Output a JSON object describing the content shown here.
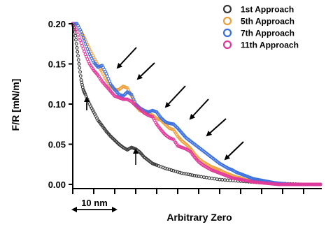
{
  "chart_data": {
    "type": "scatter",
    "title": "",
    "xlabel": "Arbitrary Zero",
    "ylabel": "F/R [mN/m]",
    "ylim": [
      0,
      0.2
    ],
    "xlim": [
      0,
      118
    ],
    "y_ticks": [
      "0.00",
      "0.05",
      "0.10",
      "0.15",
      "0.20"
    ],
    "x_scale_label": "10 nm",
    "x_scale_bar_nm": 10,
    "legend_position": "top-right",
    "series": [
      {
        "name": "1st Approach",
        "color": "#3a3a3a",
        "x": [
          0,
          1,
          2,
          3,
          4,
          5,
          6,
          8,
          10,
          12,
          14,
          16,
          18,
          20,
          22,
          24,
          26,
          28,
          30,
          32,
          34,
          36,
          38,
          40,
          44,
          48,
          52,
          56,
          60,
          65,
          70,
          75,
          80,
          85,
          90,
          95,
          100,
          105,
          110,
          115,
          118
        ],
        "y": [
          0.2,
          0.19,
          0.17,
          0.15,
          0.13,
          0.118,
          0.112,
          0.1,
          0.09,
          0.08,
          0.073,
          0.066,
          0.06,
          0.055,
          0.05,
          0.046,
          0.043,
          0.046,
          0.044,
          0.04,
          0.034,
          0.03,
          0.026,
          0.024,
          0.02,
          0.017,
          0.014,
          0.012,
          0.01,
          0.008,
          0.006,
          0.005,
          0.004,
          0.003,
          0.002,
          0.0015,
          0.001,
          0.0005,
          0.0,
          0.0,
          0.0
        ]
      },
      {
        "name": "5th Approach",
        "color": "#ef9f3c",
        "x": [
          0,
          2,
          4,
          6,
          8,
          10,
          12,
          14,
          16,
          18,
          20,
          22,
          24,
          26,
          28,
          30,
          32,
          34,
          36,
          38,
          40,
          42,
          44,
          46,
          48,
          50,
          52,
          54,
          56,
          58,
          60,
          62,
          64,
          66,
          68,
          70,
          72,
          74,
          76,
          78,
          80,
          82,
          84,
          86,
          88,
          90,
          92,
          94,
          96,
          98,
          100,
          102,
          104,
          106,
          108,
          110,
          112,
          114,
          116,
          118
        ],
        "y": [
          0.2,
          0.2,
          0.19,
          0.18,
          0.168,
          0.158,
          0.148,
          0.14,
          0.13,
          0.122,
          0.118,
          0.118,
          0.122,
          0.12,
          0.11,
          0.098,
          0.092,
          0.09,
          0.088,
          0.086,
          0.082,
          0.08,
          0.075,
          0.07,
          0.068,
          0.06,
          0.054,
          0.05,
          0.045,
          0.038,
          0.032,
          0.028,
          0.025,
          0.022,
          0.02,
          0.018,
          0.015,
          0.013,
          0.011,
          0.009,
          0.008,
          0.006,
          0.005,
          0.004,
          0.0035,
          0.003,
          0.002,
          0.0015,
          0.001,
          0.001,
          0.0005,
          0.0,
          0.0,
          0.0,
          0.0,
          0.0,
          0.0,
          0.0,
          0.0,
          0.0
        ]
      },
      {
        "name": "7th Approach",
        "color": "#3b6fe0",
        "x": [
          0,
          2,
          4,
          6,
          8,
          10,
          12,
          14,
          16,
          18,
          20,
          22,
          24,
          26,
          28,
          30,
          32,
          34,
          36,
          38,
          40,
          42,
          44,
          46,
          48,
          50,
          52,
          54,
          56,
          58,
          60,
          62,
          64,
          66,
          68,
          70,
          72,
          74,
          76,
          78,
          80,
          82,
          84,
          86,
          88,
          90,
          92,
          94,
          96,
          98,
          100,
          102,
          104,
          106,
          108,
          110,
          112,
          114,
          116,
          118
        ],
        "y": [
          0.2,
          0.2,
          0.19,
          0.175,
          0.162,
          0.152,
          0.146,
          0.148,
          0.138,
          0.125,
          0.118,
          0.112,
          0.11,
          0.115,
          0.112,
          0.1,
          0.095,
          0.092,
          0.09,
          0.092,
          0.09,
          0.083,
          0.078,
          0.076,
          0.075,
          0.07,
          0.064,
          0.058,
          0.054,
          0.05,
          0.046,
          0.042,
          0.038,
          0.034,
          0.03,
          0.026,
          0.023,
          0.02,
          0.018,
          0.015,
          0.013,
          0.011,
          0.009,
          0.007,
          0.006,
          0.005,
          0.004,
          0.003,
          0.002,
          0.0015,
          0.001,
          0.0005,
          0.0,
          0.0,
          0.0,
          0.0,
          0.0,
          0.0,
          0.0,
          0.0
        ]
      },
      {
        "name": "11th Approach",
        "color": "#e0399b",
        "x": [
          0,
          2,
          4,
          6,
          8,
          10,
          12,
          14,
          16,
          18,
          20,
          22,
          24,
          26,
          28,
          30,
          32,
          34,
          36,
          38,
          40,
          42,
          44,
          46,
          48,
          50,
          52,
          54,
          56,
          58,
          60,
          62,
          64,
          66,
          68,
          70,
          72,
          74,
          76,
          78,
          80,
          82,
          84,
          86,
          88,
          90,
          92,
          94,
          96,
          98,
          100,
          102,
          104,
          106,
          108,
          110,
          112,
          114,
          116,
          118
        ],
        "y": [
          0.2,
          0.19,
          0.176,
          0.162,
          0.15,
          0.142,
          0.136,
          0.128,
          0.122,
          0.116,
          0.11,
          0.108,
          0.106,
          0.106,
          0.103,
          0.098,
          0.094,
          0.089,
          0.086,
          0.084,
          0.075,
          0.068,
          0.062,
          0.058,
          0.056,
          0.048,
          0.046,
          0.044,
          0.041,
          0.034,
          0.028,
          0.024,
          0.021,
          0.018,
          0.016,
          0.014,
          0.012,
          0.01,
          0.008,
          0.007,
          0.006,
          0.005,
          0.004,
          0.003,
          0.0025,
          0.002,
          0.0015,
          0.001,
          0.0005,
          0.0,
          0.0,
          0.0,
          0.0,
          0.0,
          0.0,
          0.0,
          0.0,
          0.0,
          0.0,
          0.0
        ]
      }
    ]
  }
}
